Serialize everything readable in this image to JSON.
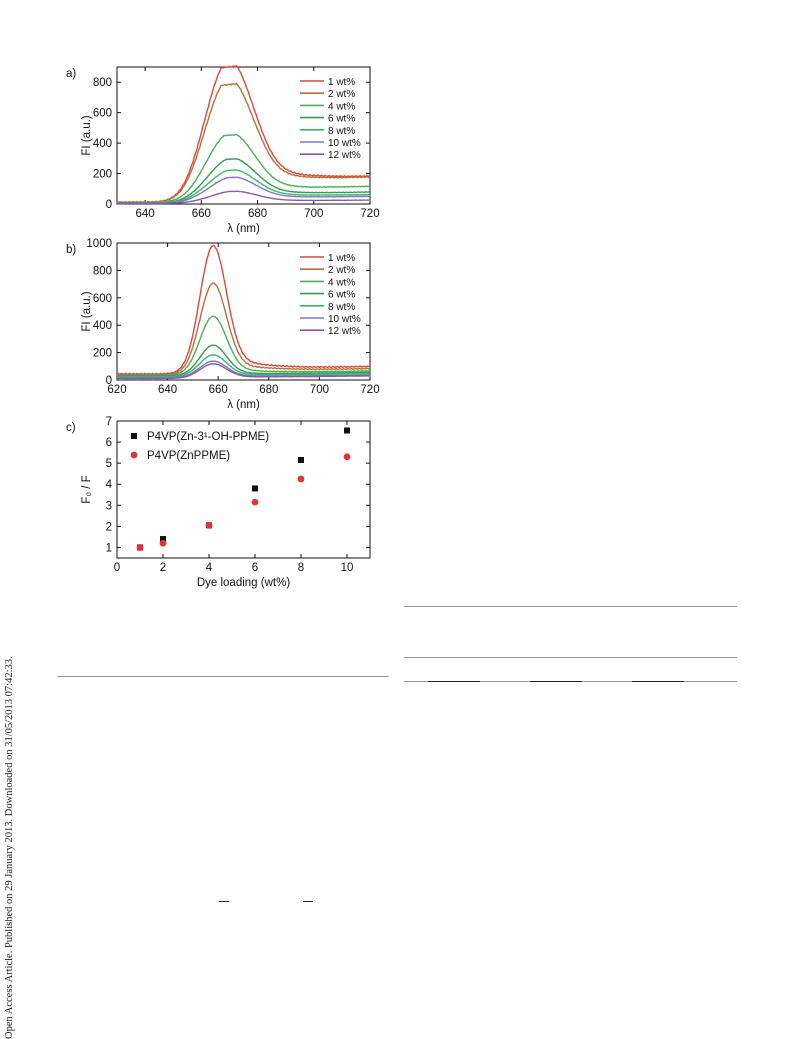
{
  "sidebar_text": "Open Access Article. Published on 29 January 2013. Downloaded on 31/05/2013 07:42:33.",
  "chart_data": [
    {
      "panel": "a)",
      "type": "line",
      "xlabel": "λ (nm)",
      "ylabel": "FI (a.u.)",
      "xlim": [
        630,
        720
      ],
      "ylim": [
        0,
        900
      ],
      "xticks": [
        640,
        660,
        680,
        700,
        720
      ],
      "yticks": [
        0,
        200,
        400,
        600,
        800
      ],
      "legend_position": "top-right",
      "peak": 672.5,
      "series": [
        {
          "name": "1 wt%",
          "color": "#e0463c",
          "peak_value": 868,
          "baseline": [
            12,
            140
          ],
          "shoulder_frac": 0.72
        },
        {
          "name": "2 wt%",
          "color": "#b5703a",
          "peak_value": 752,
          "baseline": [
            12,
            140
          ],
          "shoulder_frac": 0.72
        },
        {
          "name": "4 wt%",
          "color": "#49b05a",
          "peak_value": 430,
          "baseline": [
            10,
            95
          ],
          "shoulder_frac": 0.6
        },
        {
          "name": "6 wt%",
          "color": "#2e9e50",
          "peak_value": 280,
          "baseline": [
            8,
            65
          ],
          "shoulder_frac": 0.5
        },
        {
          "name": "8 wt%",
          "color": "#3aba66",
          "peak_value": 210,
          "baseline": [
            8,
            52
          ],
          "shoulder_frac": 0.45
        },
        {
          "name": "10 wt%",
          "color": "#7b78c8",
          "peak_value": 165,
          "baseline": [
            6,
            42
          ],
          "shoulder_frac": 0.4
        },
        {
          "name": "12 wt%",
          "color": "#8e58a8",
          "peak_value": 78,
          "baseline": [
            4,
            22
          ],
          "shoulder_frac": 0.3
        }
      ]
    },
    {
      "panel": "b)",
      "type": "line",
      "xlabel": "λ (nm)",
      "ylabel": "FI (a.u.)",
      "xlim": [
        620,
        720
      ],
      "ylim": [
        0,
        1000
      ],
      "xticks": [
        620,
        640,
        660,
        680,
        700,
        720
      ],
      "yticks": [
        0,
        200,
        400,
        600,
        800,
        1000
      ],
      "legend_position": "top-right",
      "peak": 658,
      "series": [
        {
          "name": "1 wt%",
          "color": "#e0463c",
          "peak_value": 972,
          "baseline": [
            45,
            95
          ],
          "shoulder_frac": 0.15
        },
        {
          "name": "2 wt%",
          "color": "#b5703a",
          "peak_value": 700,
          "baseline": [
            40,
            80
          ],
          "shoulder_frac": 0.15
        },
        {
          "name": "4 wt%",
          "color": "#49b05a",
          "peak_value": 460,
          "baseline": [
            35,
            65
          ],
          "shoulder_frac": 0.12
        },
        {
          "name": "6 wt%",
          "color": "#2e9e50",
          "peak_value": 250,
          "baseline": [
            30,
            55
          ],
          "shoulder_frac": 0.1
        },
        {
          "name": "8 wt%",
          "color": "#3aba66",
          "peak_value": 180,
          "baseline": [
            25,
            45
          ],
          "shoulder_frac": 0.1
        },
        {
          "name": "10 wt%",
          "color": "#7b78c8",
          "peak_value": 135,
          "baseline": [
            18,
            35
          ],
          "shoulder_frac": 0.1
        },
        {
          "name": "12 wt%",
          "color": "#8e58a8",
          "peak_value": 115,
          "baseline": [
            12,
            30
          ],
          "shoulder_frac": 0.1
        }
      ]
    },
    {
      "panel": "c)",
      "type": "scatter",
      "xlabel": "Dye loading (wt%)",
      "ylabel": "F₀ / F",
      "xlim": [
        0,
        11
      ],
      "ylim": [
        0.5,
        7
      ],
      "xticks": [
        0,
        2,
        4,
        6,
        8,
        10
      ],
      "yticks": [
        1,
        2,
        3,
        4,
        5,
        6,
        7
      ],
      "legend_position": "top-left",
      "series": [
        {
          "name": "P4VP(Zn-3¹-OH-PPME)",
          "color": "#111111",
          "marker": "square",
          "x": [
            1,
            2,
            4,
            6,
            8,
            10
          ],
          "y": [
            1.0,
            1.4,
            2.05,
            3.8,
            5.15,
            6.55
          ]
        },
        {
          "name": "P4VP(ZnPPME)",
          "color": "#e0363a",
          "marker": "circle",
          "x": [
            1,
            2,
            4,
            6,
            8,
            10
          ],
          "y": [
            1.0,
            1.2,
            2.05,
            3.15,
            4.25,
            5.3
          ]
        }
      ]
    }
  ]
}
